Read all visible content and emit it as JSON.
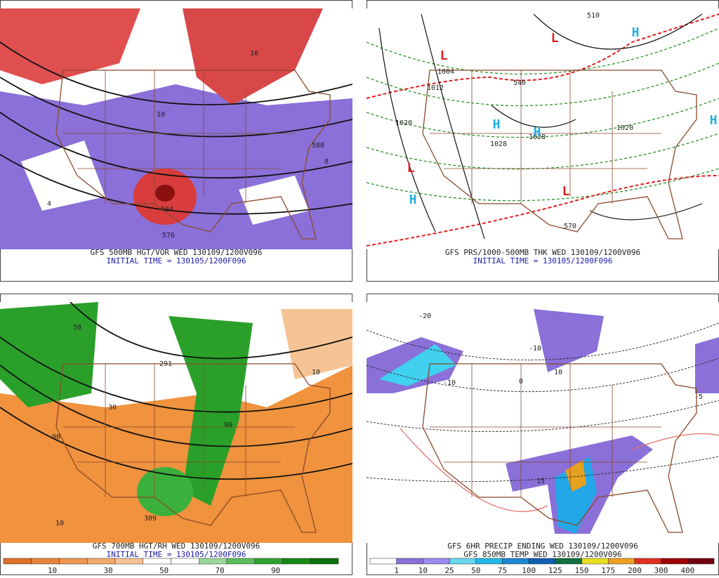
{
  "panels": [
    {
      "caption": "GFS 500MB HGT/VOR WED 130109/1200V096",
      "initial": "INITIAL TIME = 130105/1200F096",
      "labels": [
        "576",
        "564",
        "588",
        "10",
        "10",
        "8",
        "4"
      ]
    },
    {
      "caption": "GFS PRS/1000-500MB THK WED 130109/1200V096",
      "initial": "INITIAL TIME = 130105/1200F096",
      "labels": [
        "1020",
        "1028",
        "1028",
        "1012",
        "1020",
        "1004",
        "570",
        "510",
        "540"
      ],
      "lows": [
        "L",
        "L",
        "L",
        "L"
      ],
      "highs": [
        "H",
        "H",
        "H",
        "H",
        "H"
      ]
    },
    {
      "caption": "GFS 700MB HGT/RH WED 130109/1200V096",
      "initial": "INITIAL TIME = 130105/1200F096",
      "labels": [
        "309",
        "291",
        "50",
        "90",
        "90",
        "10",
        "10",
        "30"
      ]
    },
    {
      "caption": "GFS 6HR PRECIP ENDING WED 130109/1200V096",
      "caption2": "GFS 850MB TEMP WED 130109/1200V096",
      "labels": [
        "-20",
        "-10",
        "-10",
        "0",
        "10",
        "15",
        "-5"
      ]
    }
  ],
  "colorbars": [
    {
      "labels": [
        "10",
        "30",
        "50",
        "70",
        "90"
      ],
      "colors": [
        "#e0702a",
        "#e8823c",
        "#ee9650",
        "#f2ab6e",
        "#f6c494",
        "#ffffff",
        "#ffffff",
        "#9ad89a",
        "#5cbf5c",
        "#2fa02f",
        "#148a14",
        "#0a700a"
      ]
    },
    {
      "labels": [
        "1",
        "10",
        "25",
        "50",
        "75",
        "100",
        "125",
        "150",
        "175",
        "200",
        "300",
        "400"
      ],
      "colors": [
        "#ffffff",
        "#8a6fd8",
        "#9a8cf0",
        "#6ad8f0",
        "#22b8e8",
        "#1e88d8",
        "#1060b0",
        "#107040",
        "#e8e020",
        "#f0a020",
        "#e03020",
        "#a00000",
        "#700010"
      ]
    }
  ]
}
